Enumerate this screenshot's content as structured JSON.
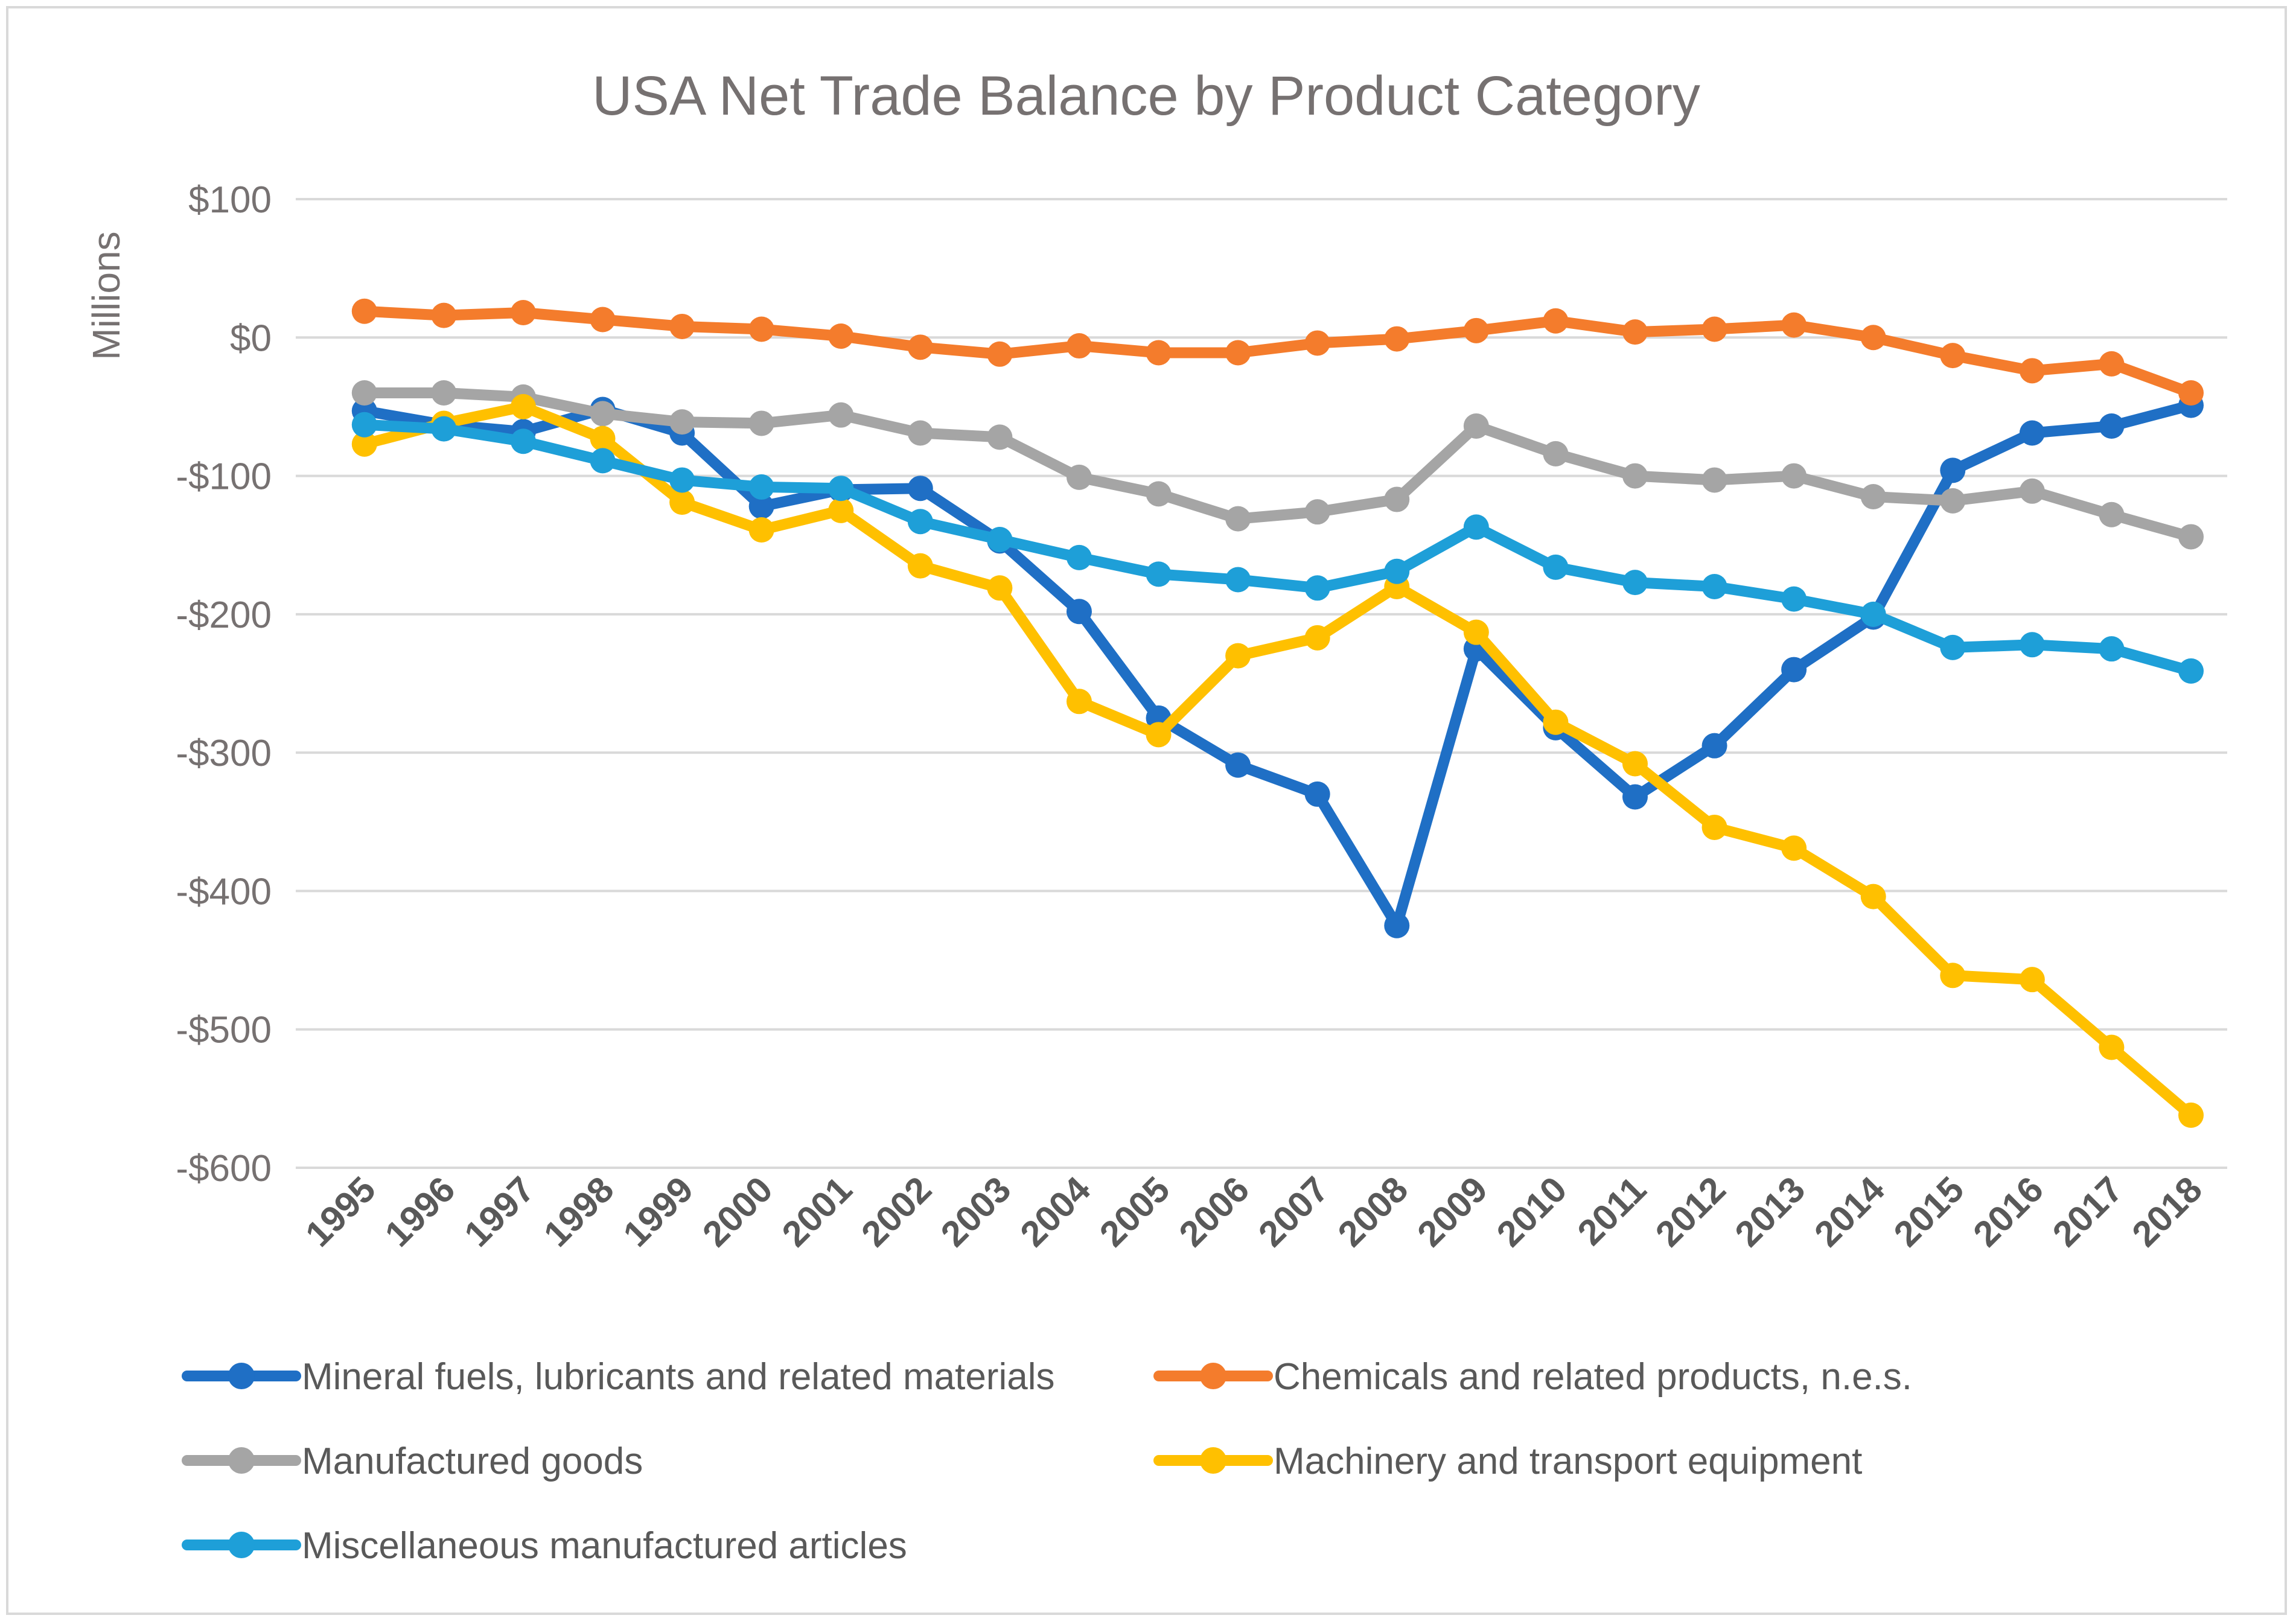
{
  "chart_data": {
    "type": "line",
    "title": "USA Net Trade Balance by Product Category",
    "xlabel": "",
    "ylabel": "Millions",
    "ylim": [
      -600,
      100
    ],
    "yticks": [
      100,
      0,
      -100,
      -200,
      -300,
      -400,
      -500,
      -600
    ],
    "ytick_labels": [
      "$100",
      "$0",
      "-$100",
      "-$200",
      "-$300",
      "-$400",
      "-$500",
      "-$600"
    ],
    "grid": true,
    "legend_position": "bottom",
    "categories": [
      "1995",
      "1996",
      "1997",
      "1998",
      "1999",
      "2000",
      "2001",
      "2002",
      "2003",
      "2004",
      "2005",
      "2006",
      "2007",
      "2008",
      "2009",
      "2010",
      "2011",
      "2012",
      "2013",
      "2014",
      "2015",
      "2016",
      "2017",
      "2018"
    ],
    "series": [
      {
        "name": "Mineral fuels, lubricants and related materials",
        "color": "#1F6FC5",
        "values": [
          -53,
          -63,
          -68,
          -52,
          -69,
          -122,
          -110,
          -109,
          -147,
          -198,
          -275,
          -309,
          -330,
          -425,
          -225,
          -282,
          -332,
          -295,
          -240,
          -202,
          -96,
          -69,
          -64,
          -49
        ]
      },
      {
        "name": "Chemicals and related products, n.e.s.",
        "color": "#F47C2C",
        "values": [
          19,
          16,
          18,
          13,
          8,
          6,
          1,
          -7,
          -12,
          -6,
          -11,
          -11,
          -4,
          -1,
          5,
          12,
          4,
          6,
          9,
          0,
          -13,
          -24,
          -19,
          -40
        ]
      },
      {
        "name": "Manufactured goods",
        "color": "#A5A5A5",
        "values": [
          -40,
          -40,
          -43,
          -55,
          -61,
          -62,
          -56,
          -69,
          -72,
          -101,
          -113,
          -131,
          -126,
          -117,
          -64,
          -84,
          -100,
          -103,
          -100,
          -115,
          -118,
          -111,
          -128,
          -144
        ]
      },
      {
        "name": "Machinery and transport equipment",
        "color": "#FFC000",
        "values": [
          -77,
          -62,
          -50,
          -73,
          -119,
          -139,
          -125,
          -165,
          -181,
          -263,
          -287,
          -230,
          -217,
          -180,
          -213,
          -278,
          -308,
          -354,
          -369,
          -404,
          -461,
          -464,
          -513,
          -562
        ]
      },
      {
        "name": "Miscellaneous manufactured articles",
        "color": "#1E9FD8",
        "values": [
          -63,
          -66,
          -75,
          -89,
          -103,
          -108,
          -109,
          -133,
          -146,
          -159,
          -171,
          -175,
          -181,
          -169,
          -137,
          -166,
          -177,
          -180,
          -189,
          -200,
          -224,
          -222,
          -225,
          -241
        ]
      }
    ]
  }
}
